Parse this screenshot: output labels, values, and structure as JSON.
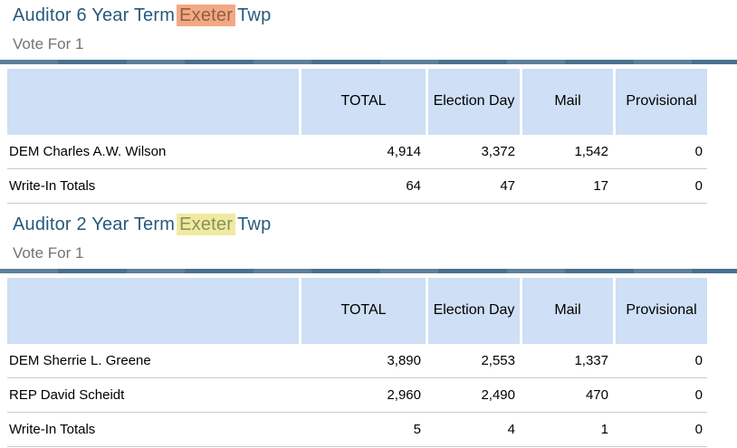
{
  "colors": {
    "title_text": "#26597d",
    "vote_for_text": "#737373",
    "header_cell_bg": "#cedff6",
    "bar_light": "#5d7f9a",
    "bar_dark": "#48708f",
    "row_divider": "#c9c9c9",
    "highlight_orange_bg": "#f2a983",
    "highlight_orange_text": "#925e46",
    "highlight_yellow_bg": "#f1e9a1",
    "highlight_yellow_text": "#859357"
  },
  "contests": [
    {
      "title": {
        "prefix": "Auditor 6 Year Term",
        "highlight": "Exeter",
        "highlight_variant": "orange",
        "suffix": "Twp"
      },
      "vote_for": "Vote For 1",
      "columns": [
        "TOTAL",
        "Election Day",
        "Mail",
        "Provisional"
      ],
      "rows": [
        {
          "name": "DEM Charles A.W. Wilson",
          "values": [
            "4,914",
            "3,372",
            "1,542",
            "0"
          ]
        },
        {
          "name": "Write-In Totals",
          "values": [
            "64",
            "47",
            "17",
            "0"
          ]
        }
      ]
    },
    {
      "title": {
        "prefix": "Auditor 2 Year Term",
        "highlight": "Exeter",
        "highlight_variant": "yellow",
        "suffix": "Twp"
      },
      "vote_for": "Vote For 1",
      "columns": [
        "TOTAL",
        "Election Day",
        "Mail",
        "Provisional"
      ],
      "rows": [
        {
          "name": "DEM Sherrie L. Greene",
          "values": [
            "3,890",
            "2,553",
            "1,337",
            "0"
          ]
        },
        {
          "name": "REP David Scheidt",
          "values": [
            "2,960",
            "2,490",
            "470",
            "0"
          ]
        },
        {
          "name": "Write-In Totals",
          "values": [
            "5",
            "4",
            "1",
            "0"
          ]
        }
      ]
    }
  ]
}
